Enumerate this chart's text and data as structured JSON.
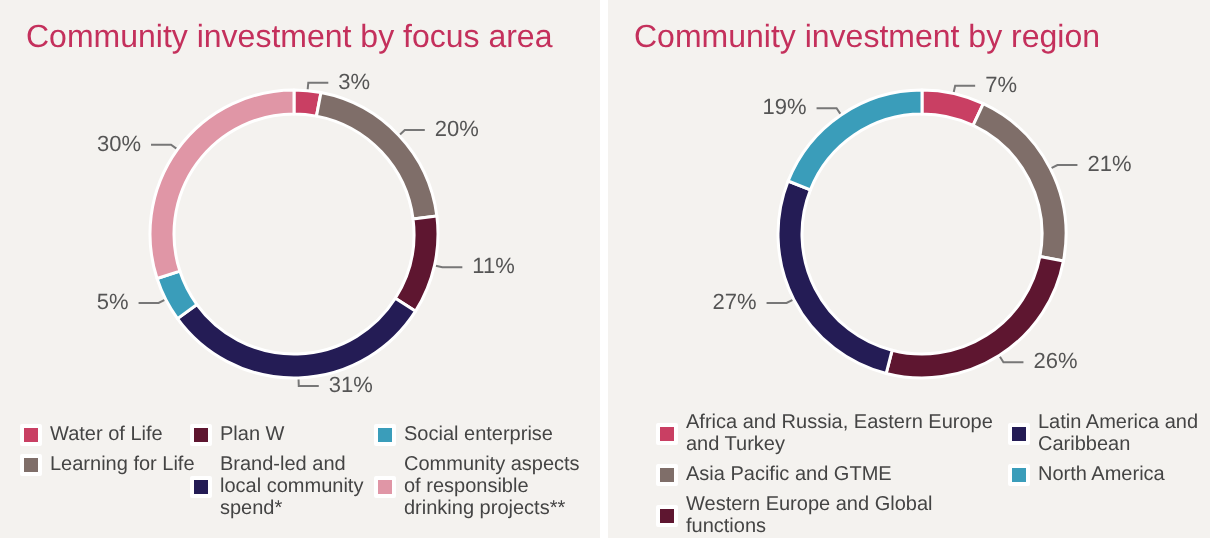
{
  "chart_data": [
    {
      "type": "donut",
      "title": "Community investment by focus area",
      "categories": [
        "Water of Life",
        "Learning for Life",
        "Plan W",
        "Brand-led and local community spend*",
        "Social enterprise",
        "Community aspects of responsible drinking projects**"
      ],
      "values": [
        3,
        20,
        11,
        31,
        5,
        30
      ],
      "value_labels": [
        "3%",
        "20%",
        "11%",
        "31%",
        "5%",
        "30%"
      ],
      "colors": [
        "#c93f63",
        "#7f6e69",
        "#5e1630",
        "#241c55",
        "#3a9dba",
        "#e096a6"
      ],
      "legend": "bottom"
    },
    {
      "type": "donut",
      "title": "Community investment by region",
      "categories": [
        "Africa and Russia, Eastern Europe and Turkey",
        "Asia Pacific and GTME",
        "Western Europe and Global functions",
        "Latin America and Caribbean",
        "North America"
      ],
      "values": [
        7,
        21,
        26,
        27,
        19
      ],
      "value_labels": [
        "7%",
        "21%",
        "26%",
        "27%",
        "19%"
      ],
      "colors": [
        "#c93f63",
        "#7f6e69",
        "#5e1630",
        "#241c55",
        "#3a9dba"
      ],
      "legend": "bottom"
    }
  ]
}
